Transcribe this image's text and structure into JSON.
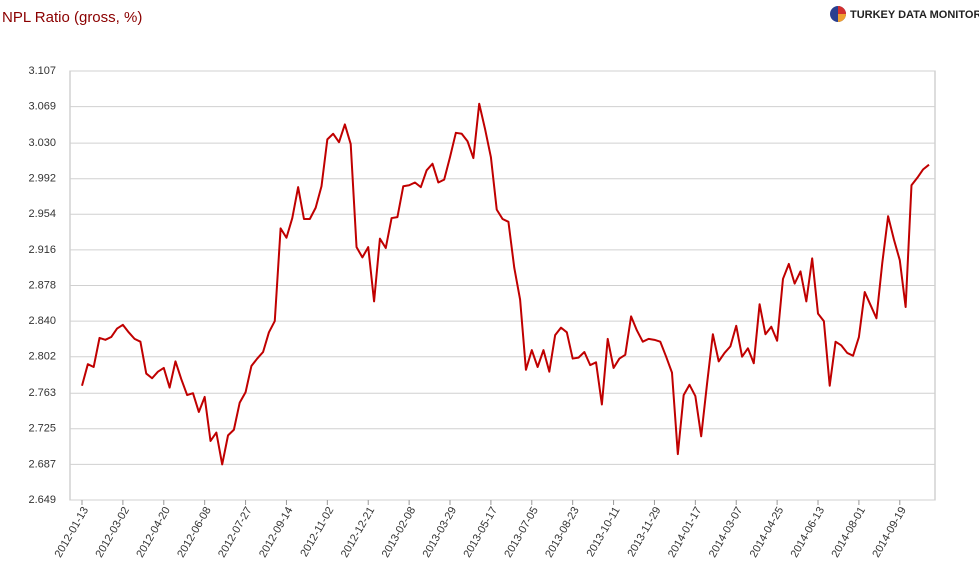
{
  "chart_data": {
    "type": "line",
    "title": "NPL Ratio (gross, %)",
    "brand": "TURKEY DATA MONITOR",
    "categories": [
      "2012-01-13",
      null,
      null,
      null,
      null,
      null,
      null,
      "2012-03-02",
      null,
      null,
      null,
      null,
      null,
      null,
      "2012-04-20",
      null,
      null,
      null,
      null,
      null,
      null,
      "2012-06-08",
      null,
      null,
      null,
      null,
      null,
      null,
      "2012-07-27",
      null,
      null,
      null,
      null,
      null,
      null,
      "2012-09-14",
      null,
      null,
      null,
      null,
      null,
      null,
      "2012-11-02",
      null,
      null,
      null,
      null,
      null,
      null,
      "2012-12-21",
      null,
      null,
      null,
      null,
      null,
      null,
      "2013-02-08",
      null,
      null,
      null,
      null,
      null,
      null,
      "2013-03-29",
      null,
      null,
      null,
      null,
      null,
      null,
      "2013-05-17",
      null,
      null,
      null,
      null,
      null,
      null,
      "2013-07-05",
      null,
      null,
      null,
      null,
      null,
      null,
      "2013-08-23",
      null,
      null,
      null,
      null,
      null,
      null,
      "2013-10-11",
      null,
      null,
      null,
      null,
      null,
      null,
      "2013-11-29",
      null,
      null,
      null,
      null,
      null,
      null,
      "2014-01-17",
      null,
      null,
      null,
      null,
      null,
      null,
      "2014-03-07",
      null,
      null,
      null,
      null,
      null,
      null,
      "2014-04-25",
      null,
      null,
      null,
      null,
      null,
      null,
      "2014-06-13",
      null,
      null,
      null,
      null,
      null,
      null,
      "2014-08-01",
      null,
      null,
      null,
      null,
      null,
      null,
      "2014-09-19",
      null,
      null,
      null,
      null,
      null
    ],
    "values": [
      2.771,
      2.794,
      2.791,
      2.822,
      2.82,
      2.823,
      2.832,
      2.836,
      2.828,
      2.821,
      2.818,
      2.784,
      2.779,
      2.786,
      2.79,
      2.769,
      2.797,
      2.778,
      2.761,
      2.763,
      2.743,
      2.759,
      2.712,
      2.721,
      2.687,
      2.718,
      2.724,
      2.753,
      2.764,
      2.792,
      2.8,
      2.807,
      2.828,
      2.84,
      2.939,
      2.929,
      2.95,
      2.983,
      2.949,
      2.949,
      2.961,
      2.984,
      3.034,
      3.04,
      3.031,
      3.05,
      3.029,
      2.919,
      2.908,
      2.919,
      2.861,
      2.928,
      2.918,
      2.95,
      2.951,
      2.984,
      2.985,
      2.988,
      2.983,
      3.001,
      3.008,
      2.988,
      2.991,
      3.015,
      3.041,
      3.04,
      3.032,
      3.014,
      3.072,
      3.045,
      3.015,
      2.959,
      2.949,
      2.946,
      2.897,
      2.863,
      2.788,
      2.809,
      2.791,
      2.809,
      2.786,
      2.825,
      2.833,
      2.828,
      2.8,
      2.801,
      2.807,
      2.793,
      2.796,
      2.751,
      2.821,
      2.79,
      2.8,
      2.804,
      2.845,
      2.83,
      2.818,
      2.821,
      2.82,
      2.818,
      2.802,
      2.785,
      2.698,
      2.761,
      2.772,
      2.76,
      2.717,
      2.773,
      2.826,
      2.797,
      2.806,
      2.813,
      2.835,
      2.802,
      2.811,
      2.795,
      2.858,
      2.826,
      2.834,
      2.819,
      2.885,
      2.901,
      2.88,
      2.893,
      2.861,
      2.907,
      2.848,
      2.84,
      2.771,
      2.818,
      2.814,
      2.806,
      2.803,
      2.823,
      2.871,
      2.857,
      2.843,
      2.902,
      2.952,
      2.927,
      2.905,
      2.855,
      2.985,
      2.993,
      3.002,
      3.007
    ],
    "color": "#c00000",
    "ylim": [
      2.649,
      3.107
    ],
    "yticks": [
      2.649,
      2.687,
      2.725,
      2.763,
      2.802,
      {
        "value": 2.84,
        "label": "2.840"
      },
      2.878,
      2.916,
      2.954,
      2.992,
      {
        "value": 3.03,
        "label": "3.030"
      },
      3.069,
      3.107
    ],
    "grid": true
  }
}
